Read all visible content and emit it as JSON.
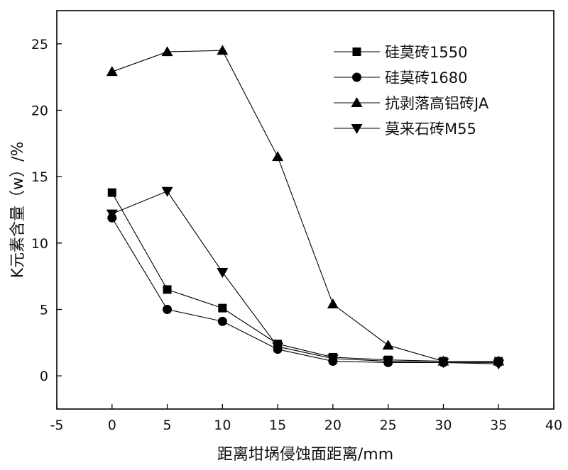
{
  "chart_data": {
    "type": "line",
    "title": "",
    "xlabel": "距离坩埚侵蚀面距离/mm",
    "ylabel": "K元素含量（w）/%",
    "xlim": [
      -5,
      40
    ],
    "ylim": [
      -2.5,
      27.5
    ],
    "x_ticks": [
      -5,
      0,
      5,
      10,
      15,
      20,
      25,
      30,
      35,
      40
    ],
    "y_ticks": [
      0,
      5,
      10,
      15,
      20,
      25
    ],
    "x": [
      0,
      5,
      10,
      15,
      20,
      25,
      30,
      35
    ],
    "legend_position": "top-right",
    "series": [
      {
        "name": "硅莫砖1550",
        "marker": "square",
        "values": [
          13.8,
          6.5,
          5.1,
          2.4,
          1.4,
          1.2,
          1.1,
          1.1
        ]
      },
      {
        "name": "硅莫砖1680",
        "marker": "circle",
        "values": [
          11.9,
          5.0,
          4.1,
          2.0,
          1.1,
          1.0,
          1.0,
          1.0
        ]
      },
      {
        "name": "抗剥落高铝砖JA",
        "marker": "triangle-up",
        "values": [
          22.9,
          24.4,
          24.5,
          16.5,
          5.4,
          2.3,
          1.1,
          1.1
        ]
      },
      {
        "name": "莫来石砖M55",
        "marker": "triangle-down",
        "values": [
          12.2,
          13.9,
          7.8,
          2.2,
          1.3,
          1.1,
          1.0,
          0.9
        ]
      }
    ]
  }
}
